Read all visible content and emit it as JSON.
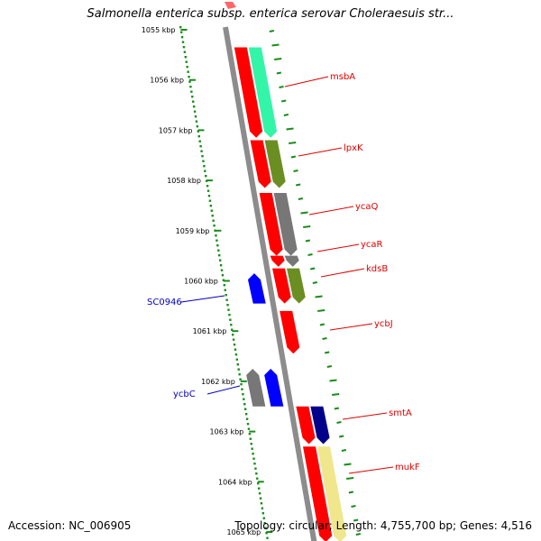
{
  "title": "Salmonella enterica subsp. enterica serovar Choleraesuis str...",
  "footer": {
    "accession": "Accession: NC_006905",
    "summary": "Topology: circular; Length: 4,755,700 bp; Genes: 4,516"
  },
  "colors": {
    "backbone": "#8c8c8c",
    "tick_green": "#1a8c1a",
    "forward_label": "#e00000",
    "reverse_label": "#0000c0"
  },
  "ticks": [
    "1055 kbp",
    "1056 kbp",
    "1057 kbp",
    "1058 kbp",
    "1059 kbp",
    "1060 kbp",
    "1061 kbp",
    "1062 kbp",
    "1063 kbp",
    "1064 kbp",
    "1065 kbp"
  ],
  "genes": [
    {
      "name": "msbA",
      "strand": "+",
      "start_kbp": 1055.35,
      "end_kbp": 1057.15,
      "color": "#ff0000",
      "cog_color": "#33f5a8",
      "label": true
    },
    {
      "name": "lpxK",
      "strand": "+",
      "start_kbp": 1057.2,
      "end_kbp": 1058.15,
      "color": "#ff0000",
      "cog_color": "#6b8e23",
      "label": true
    },
    {
      "name": "ycaQ",
      "strand": "+",
      "start_kbp": 1058.25,
      "end_kbp": 1059.5,
      "color": "#ff0000",
      "cog_color": "#777777",
      "label": true
    },
    {
      "name": "ycaR",
      "strand": "+",
      "start_kbp": 1059.5,
      "end_kbp": 1059.72,
      "color": "#ff0000",
      "cog_color": "#777777",
      "label": true
    },
    {
      "name": "kdsB",
      "strand": "+",
      "start_kbp": 1059.75,
      "end_kbp": 1060.45,
      "color": "#ff0000",
      "cog_color": "#6b8e23",
      "label": true
    },
    {
      "name": "SC0946",
      "strand": "-",
      "start_kbp": 1059.85,
      "end_kbp": 1060.45,
      "color": "#0000ff",
      "cog_color": null,
      "label": true
    },
    {
      "name": "ycbJ",
      "strand": "+",
      "start_kbp": 1060.6,
      "end_kbp": 1061.45,
      "color": "#ff0000",
      "cog_color": null,
      "label": true
    },
    {
      "name": "ycbC",
      "strand": "-",
      "start_kbp": 1061.75,
      "end_kbp": 1062.5,
      "color": "#0000ff",
      "cog_color": null,
      "label": true
    },
    {
      "name": "",
      "strand": "-",
      "start_kbp": 1061.75,
      "end_kbp": 1062.5,
      "color": "#777777",
      "cog_color": null,
      "label": false
    },
    {
      "name": "smtA",
      "strand": "+",
      "start_kbp": 1062.5,
      "end_kbp": 1063.25,
      "color": "#ff0000",
      "cog_color": "#00008b",
      "label": true
    },
    {
      "name": "mukF",
      "strand": "+",
      "start_kbp": 1063.3,
      "end_kbp": 1065.2,
      "color": "#ff0000",
      "cog_color": "#f0e68c",
      "label": true
    }
  ]
}
